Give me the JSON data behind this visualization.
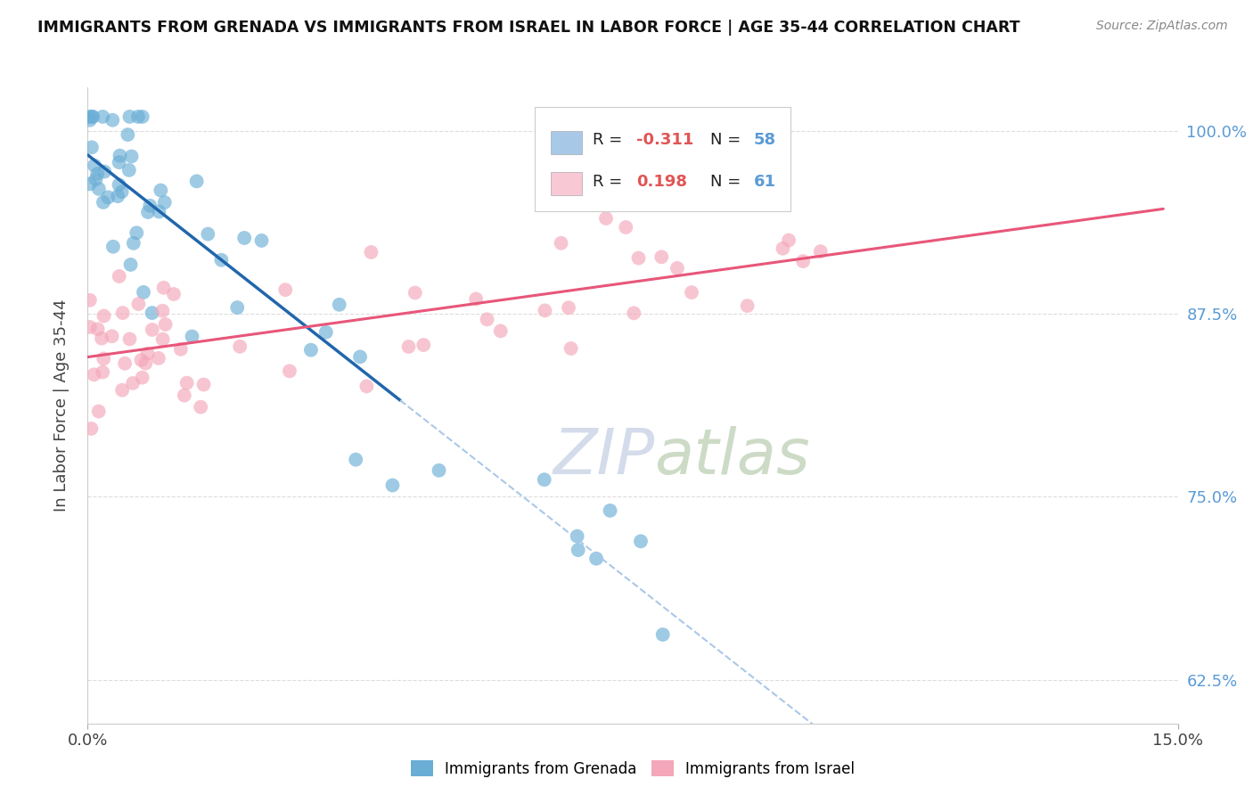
{
  "title": "IMMIGRANTS FROM GRENADA VS IMMIGRANTS FROM ISRAEL IN LABOR FORCE | AGE 35-44 CORRELATION CHART",
  "source": "Source: ZipAtlas.com",
  "xlabel_bottom": "Immigrants from Grenada",
  "xlabel_right": "Immigrants from Israel",
  "ylabel": "In Labor Force | Age 35-44",
  "xlim": [
    0.0,
    0.15
  ],
  "ylim": [
    0.595,
    1.03
  ],
  "yticks": [
    0.625,
    0.75,
    0.875,
    1.0
  ],
  "ytick_labels": [
    "62.5%",
    "75.0%",
    "87.5%",
    "100.0%"
  ],
  "xticks": [
    0.0,
    0.15
  ],
  "xtick_labels": [
    "0.0%",
    "15.0%"
  ],
  "grenada_R": -0.311,
  "grenada_N": 58,
  "israel_R": 0.198,
  "israel_N": 61,
  "blue_color": "#6aaed6",
  "pink_color": "#f4a7b9",
  "blue_line_color": "#2166ac",
  "pink_line_color": "#e8567a",
  "dashed_line_color": "#aac8e8",
  "legend_blue_face": "#a8c8e8",
  "legend_pink_face": "#f8c8d4",
  "background_color": "#ffffff",
  "grid_color": "#dddddd",
  "watermark": "ZIPatlas",
  "watermark_color": "#d0d8e8"
}
